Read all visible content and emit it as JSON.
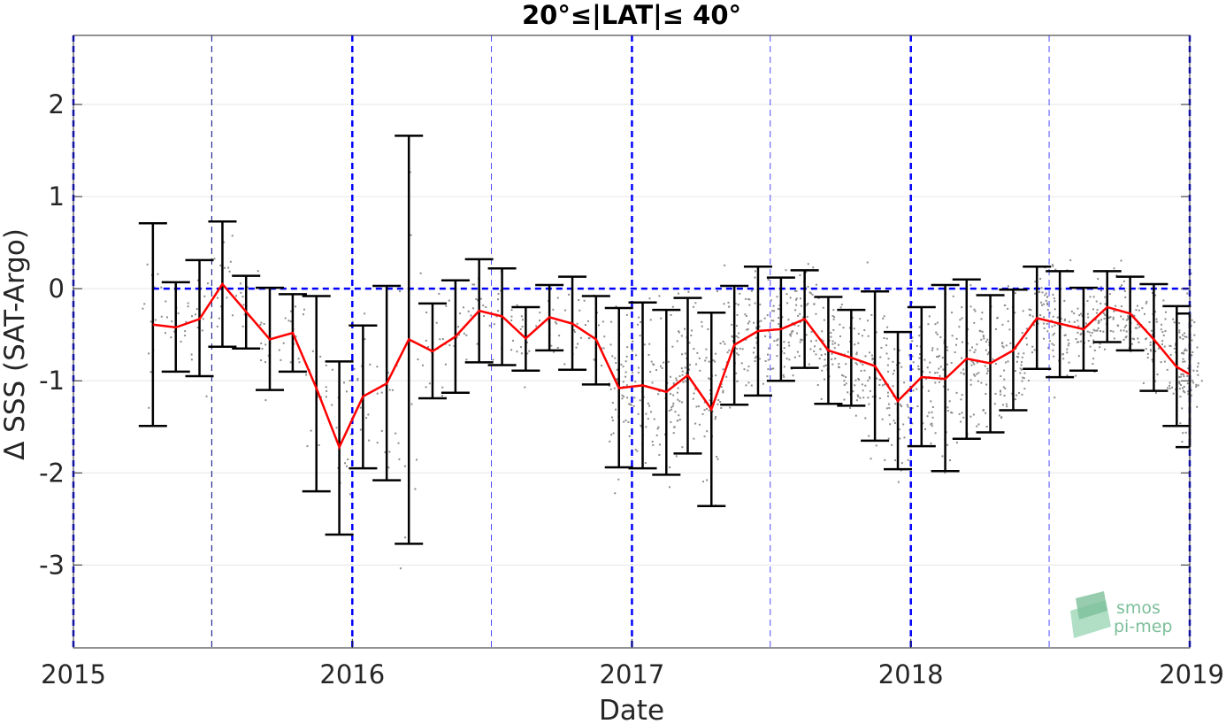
{
  "chart_data": {
    "type": "line",
    "title": "20°≤|LAT|≤ 40°",
    "xlabel": "Date",
    "ylabel": "Δ SSS (SAT-Argo)",
    "xlim": [
      "2015-01-01",
      "2019-01-01"
    ],
    "ylim": [
      -3.9,
      2.75
    ],
    "x_ticks": [
      "2015",
      "2016",
      "2017",
      "2018",
      "2019"
    ],
    "y_ticks": [
      2,
      1,
      0,
      -1,
      -2,
      -3
    ],
    "y_tick_labels": [
      "2",
      "1",
      "0",
      "-1",
      "-2",
      "-3"
    ],
    "grid": true,
    "reference_line": {
      "y": 0,
      "color": "#0000ff",
      "style": "dashed"
    },
    "year_lines": [
      "2015-01-01",
      "2016-01-01",
      "2017-01-01",
      "2018-01-01",
      "2019-01-01"
    ],
    "half_year_lines": [
      "2015-07-01",
      "2016-07-01",
      "2017-07-01",
      "2018-07-01"
    ],
    "series": [
      {
        "kind": "monthly-median-with-errorbars",
        "color": "#ff0000",
        "x": [
          "2015-04-15",
          "2015-05-15",
          "2015-06-15",
          "2015-07-15",
          "2015-08-15",
          "2015-09-15",
          "2015-10-15",
          "2015-11-15",
          "2015-12-15",
          "2016-01-15",
          "2016-02-15",
          "2016-03-15",
          "2016-04-15",
          "2016-05-15",
          "2016-06-15",
          "2016-07-15",
          "2016-08-15",
          "2016-09-15",
          "2016-10-15",
          "2016-11-15",
          "2016-12-15",
          "2017-01-15",
          "2017-02-15",
          "2017-03-15",
          "2017-04-15",
          "2017-05-15",
          "2017-06-15",
          "2017-07-15",
          "2017-08-15",
          "2017-09-15",
          "2017-10-15",
          "2017-11-15",
          "2017-12-15",
          "2018-01-15",
          "2018-02-15",
          "2018-03-15",
          "2018-04-15",
          "2018-05-15",
          "2018-06-15",
          "2018-07-15",
          "2018-08-15",
          "2018-09-15",
          "2018-10-15",
          "2018-11-15",
          "2018-12-15",
          "2019-01-01"
        ],
        "y": [
          -0.39,
          -0.42,
          -0.33,
          0.05,
          -0.25,
          -0.55,
          -0.48,
          -1.08,
          -1.72,
          -1.17,
          -1.03,
          -0.55,
          -0.68,
          -0.52,
          -0.24,
          -0.3,
          -0.54,
          -0.31,
          -0.38,
          -0.55,
          -1.08,
          -1.05,
          -1.12,
          -0.94,
          -1.31,
          -0.61,
          -0.46,
          -0.44,
          -0.33,
          -0.67,
          -0.75,
          -0.84,
          -1.22,
          -0.96,
          -0.98,
          -0.76,
          -0.81,
          -0.67,
          -0.32,
          -0.38,
          -0.44,
          -0.2,
          -0.27,
          -0.55,
          -0.85,
          -0.93
        ],
        "upper": [
          0.71,
          0.07,
          0.31,
          0.73,
          0.14,
          0.01,
          -0.06,
          -0.08,
          -0.79,
          -0.4,
          0.03,
          1.66,
          -0.16,
          0.09,
          0.32,
          0.22,
          -0.2,
          0.04,
          0.13,
          -0.08,
          -0.21,
          -0.15,
          -0.23,
          -0.1,
          -0.26,
          0.03,
          0.24,
          0.12,
          0.2,
          -0.09,
          -0.23,
          -0.03,
          -0.47,
          -0.2,
          0.04,
          0.1,
          -0.07,
          -0.01,
          0.24,
          0.19,
          0.01,
          0.19,
          0.13,
          0.05,
          -0.19,
          -0.27
        ],
        "lower": [
          -1.49,
          -0.9,
          -0.95,
          -0.63,
          -0.65,
          -1.1,
          -0.9,
          -2.2,
          -2.67,
          -1.95,
          -2.08,
          -2.77,
          -1.19,
          -1.13,
          -0.8,
          -0.83,
          -0.89,
          -0.67,
          -0.88,
          -1.04,
          -1.94,
          -1.95,
          -2.02,
          -1.79,
          -2.36,
          -1.26,
          -1.16,
          -1.0,
          -0.86,
          -1.25,
          -1.27,
          -1.65,
          -1.96,
          -1.71,
          -1.98,
          -1.63,
          -1.56,
          -1.32,
          -0.87,
          -0.96,
          -0.89,
          -0.58,
          -0.67,
          -1.11,
          -1.49,
          -1.72
        ]
      }
    ],
    "scatter": {
      "color": "#8c8c8c",
      "note": "individual collocation differences"
    }
  },
  "logo": {
    "line1": "smos",
    "line2": "pi-mep"
  }
}
